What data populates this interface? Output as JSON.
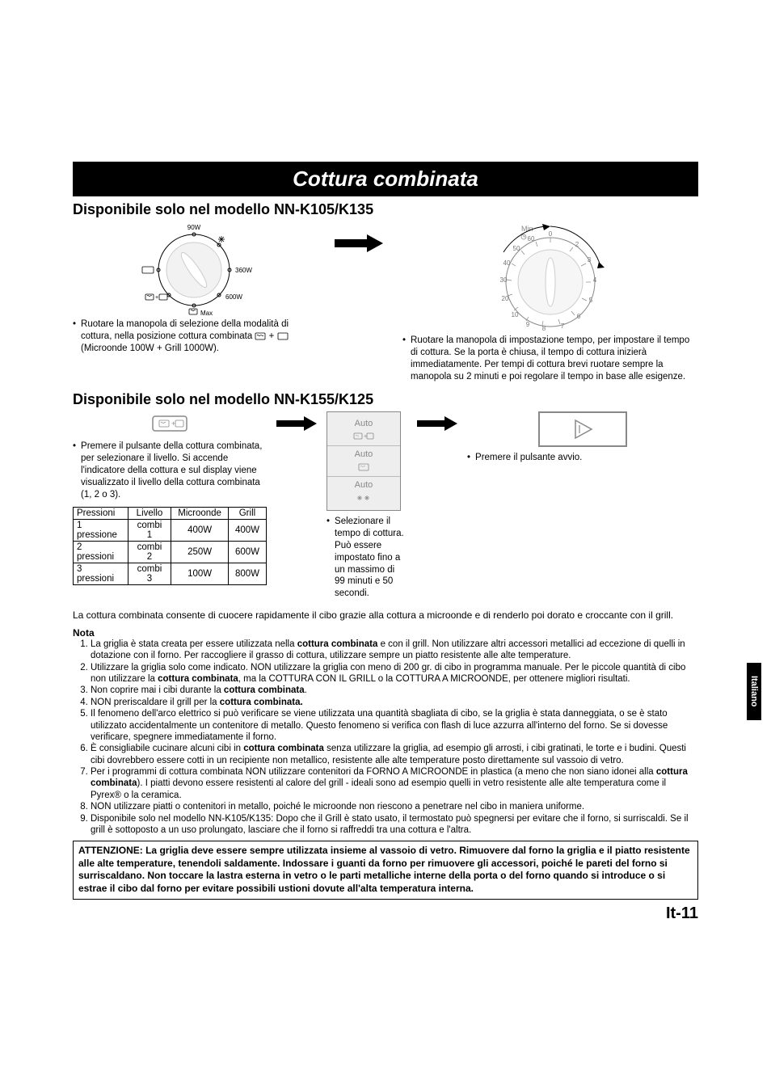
{
  "title": "Cottura combinata",
  "section1": {
    "heading": "Disponibile solo nel modello NN-K105/K135",
    "dial_mode": {
      "labels": [
        "90W",
        "360W",
        "600W",
        "Max"
      ],
      "defrost_icon": "defrost",
      "grill_icon": "grill",
      "combi_icon": "combi"
    },
    "mode_text": "Ruotare la manopola di selezione della modalità di cottura, nella posizione cottura combinata",
    "mode_text_after": "(Microonde 100W + Grill 1000W).",
    "combi_plus": "+",
    "dial_timer": {
      "top_label": "Min",
      "ticks": [
        "0",
        "2",
        "3",
        "4",
        "5",
        "6",
        "7",
        "8",
        "9",
        "10",
        "20",
        "30",
        "40",
        "50",
        "60"
      ]
    },
    "timer_text": "Ruotare la manopola di impostazione tempo, per impostare il tempo di cottura. Se la porta è chiusa, il tempo di cottura inizierà immediatamente. Per tempi di cottura brevi ruotare sempre la manopola su 2 minuti e poi regolare il tempo in base alle esigenze."
  },
  "section2": {
    "heading": "Disponibile solo nel modello NN-K155/K125",
    "button_text": "Premere il pulsante della cottura combinata, per selezionare il livello. Si accende l'indicatore della cottura e sul display viene visualizzato il livello della cottura combinata (1, 2 o 3).",
    "panel_lines": [
      "Auto",
      "Auto",
      "Auto"
    ],
    "time_text": "Selezionare il tempo di cottura. Può essere impostato fino a un massimo di 99 minuti e 50 secondi.",
    "start_text": "Premere il pulsante avvio.",
    "table": {
      "headers": [
        "Pressioni",
        "Livello",
        "Microonde",
        "Grill"
      ],
      "rows": [
        [
          "1 pressione",
          "combi 1",
          "400W",
          "400W"
        ],
        [
          "2 pressioni",
          "combi 2",
          "250W",
          "600W"
        ],
        [
          "3 pressioni",
          "combi 3",
          "100W",
          "800W"
        ]
      ]
    }
  },
  "body_para": "La cottura combinata consente di cuocere rapidamente il cibo grazie alla cottura a microonde e di renderlo poi dorato e croccante con il grill.",
  "note_label": "Nota",
  "notes": [
    {
      "pre": "La griglia è stata creata per essere utilizzata nella ",
      "b1": "cottura combinata",
      "post1": " e con il grill. Non utilizzare altri accessori metallici ad eccezione di quelli in dotazione con il forno. Per raccogliere il grasso di cottura, utilizzare sempre un piatto resistente alle alte temperature."
    },
    {
      "pre": "Utilizzare la griglia solo come indicato. NON utilizzare la griglia con meno di 200 gr. di cibo in programma manuale. Per le piccole quantità di cibo non utilizzare la ",
      "b1": "cottura combinata",
      "post1": ", ma la COTTURA CON IL GRILL o la COTTURA A MICROONDE, per ottenere migliori risultati."
    },
    {
      "pre": "Non coprire mai i cibi durante la ",
      "b1": "cottura combinata",
      "post1": "."
    },
    {
      "pre": "NON preriscaldare il grill per la ",
      "b1": "cottura combinata.",
      "post1": ""
    },
    {
      "pre": "Il fenomeno dell'arco elettrico si può verificare se viene utilizzata una quantità sbagliata di cibo, se la griglia è stata danneggiata, o se è stato utilizzato accidentalmente un contenitore di metallo. Questo fenomeno si verifica con flash di luce azzurra all'interno del forno. Se si dovesse verificare, spegnere immediatamente il forno.",
      "b1": "",
      "post1": ""
    },
    {
      "pre": "È consigliabile cucinare alcuni cibi in ",
      "b1": "cottura combinata",
      "post1": " senza utilizzare la griglia, ad esempio gli arrosti, i cibi gratinati, le torte e i budini. Questi cibi dovrebbero essere cotti in un recipiente non metallico, resistente alle alte temperature posto direttamente sul vassoio di vetro."
    },
    {
      "pre": "Per i programmi di cottura combinata NON utilizzare contenitori da FORNO A MICROONDE in plastica (a meno che non siano idonei alla ",
      "b1": "cottura combinata",
      "post1": "). I piatti devono essere resistenti al calore del grill - ideali sono ad esempio quelli in vetro resistente alle alte temperatura come il Pyrex® o la ceramica."
    },
    {
      "pre": "NON utilizzare piatti o contenitori in metallo, poiché le microonde non riescono a penetrare nel cibo in maniera uniforme.",
      "b1": "",
      "post1": ""
    },
    {
      "pre": "Disponibile solo nel modello NN-K105/K135: Dopo che il Grill è stato usato, il termostato può spegnersi per evitare che il forno, si surriscaldi. Se il grill è sottoposto a un uso prolungato, lasciare che il forno si raffreddi tra una cottura e l'altra.",
      "b1": "",
      "post1": ""
    }
  ],
  "warning": "ATTENZIONE: La griglia deve essere sempre utilizzata insieme al vassoio di vetro. Rimuovere dal forno la griglia e il piatto resistente alle alte temperature, tenendoli saldamente. Indossare i guanti da forno per rimuovere gli accessori, poiché le pareti del forno si surriscaldano. Non toccare la lastra esterna in vetro o le parti metalliche interne della porta o del forno quando si introduce o si estrae il cibo dal forno per evitare possibili ustioni dovute all'alta temperatura interna.",
  "page_num": "It-11",
  "side_tab": "Italiano",
  "colors": {
    "black": "#000000",
    "grey": "#888888",
    "panel_bg": "#eeeeee"
  }
}
